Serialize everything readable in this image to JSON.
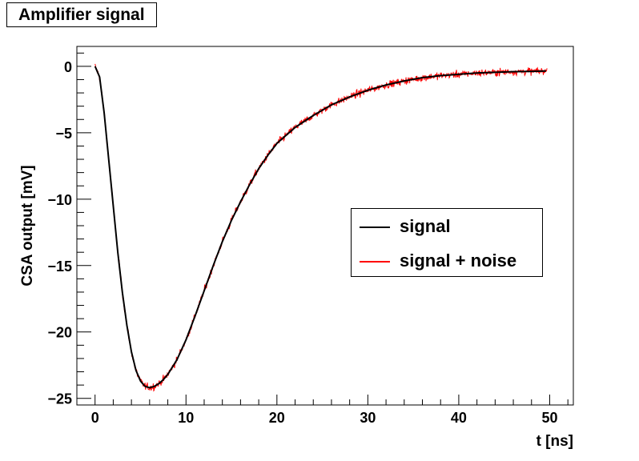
{
  "title": "Amplifier signal",
  "chart_data": {
    "type": "line",
    "title": "Amplifier signal",
    "xlabel": "t [ns]",
    "ylabel": "CSA output [mV]",
    "xlim": [
      -2,
      52.6
    ],
    "ylim": [
      -25.5,
      1.5
    ],
    "xticks": [
      0,
      10,
      20,
      30,
      40,
      50
    ],
    "xtick_labels": [
      "0",
      "10",
      "20",
      "30",
      "40",
      "50"
    ],
    "yticks": [
      0,
      -5,
      -10,
      -15,
      -20,
      -25
    ],
    "ytick_labels": [
      "0",
      "−5",
      "−10",
      "−15",
      "−20",
      "−25"
    ],
    "grid": false,
    "legend": "center-right",
    "series": [
      {
        "name": "signal",
        "color": "#000000",
        "x": [
          0,
          0.5,
          1,
          1.5,
          2,
          2.5,
          3,
          3.5,
          4,
          4.5,
          5,
          5.5,
          6,
          6.5,
          7,
          7.5,
          8,
          9,
          10,
          11,
          12,
          13,
          14,
          15,
          16,
          17,
          18,
          19,
          20,
          22,
          24,
          26,
          28,
          30,
          32,
          34,
          36,
          38,
          40,
          42,
          44,
          46,
          48,
          49.7
        ],
        "y": [
          0,
          -0.8,
          -3.5,
          -7.0,
          -10.5,
          -14.0,
          -17.0,
          -19.5,
          -21.5,
          -22.9,
          -23.7,
          -24.1,
          -24.2,
          -24.1,
          -23.9,
          -23.6,
          -23.2,
          -22.1,
          -20.6,
          -18.8,
          -16.9,
          -15.0,
          -13.2,
          -11.6,
          -10.2,
          -8.9,
          -7.7,
          -6.7,
          -5.8,
          -4.6,
          -3.7,
          -2.9,
          -2.3,
          -1.8,
          -1.4,
          -1.1,
          -0.85,
          -0.7,
          -0.6,
          -0.5,
          -0.45,
          -0.4,
          -0.38,
          -0.35
        ]
      },
      {
        "name": "signal + noise",
        "color": "#ff0000",
        "noise_amplitude": 0.35
      }
    ]
  }
}
